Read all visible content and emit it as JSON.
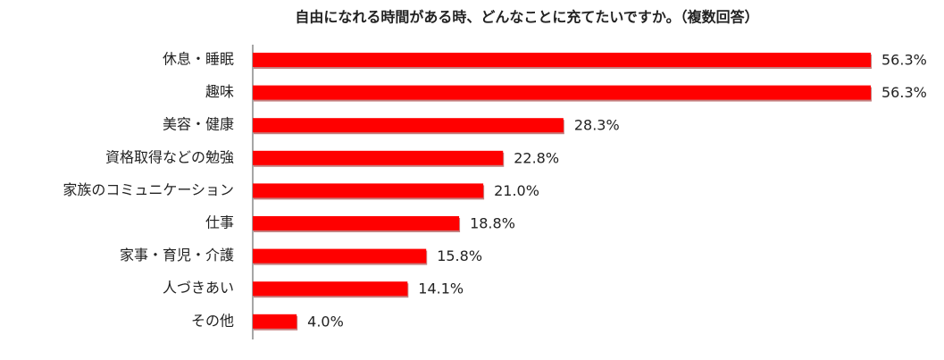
{
  "chart_data": {
    "type": "bar",
    "orientation": "horizontal",
    "title": "自由になれる時間がある時、どんなことに充てたいですか。（複数回答）",
    "categories": [
      "休息・睡眠",
      "趣味",
      "美容・健康",
      "資格取得などの勉強",
      "家族のコミュニケーション",
      "仕事",
      "家事・育児・介護",
      "人づきあい",
      "その他"
    ],
    "values": [
      56.3,
      56.3,
      28.3,
      22.8,
      21.0,
      18.8,
      15.8,
      14.1,
      4.0
    ],
    "value_labels": [
      "56.3%",
      "56.3%",
      "28.3%",
      "22.8%",
      "21.0%",
      "18.8%",
      "15.8%",
      "14.1%",
      "4.0%"
    ],
    "color": "#ff0000"
  }
}
